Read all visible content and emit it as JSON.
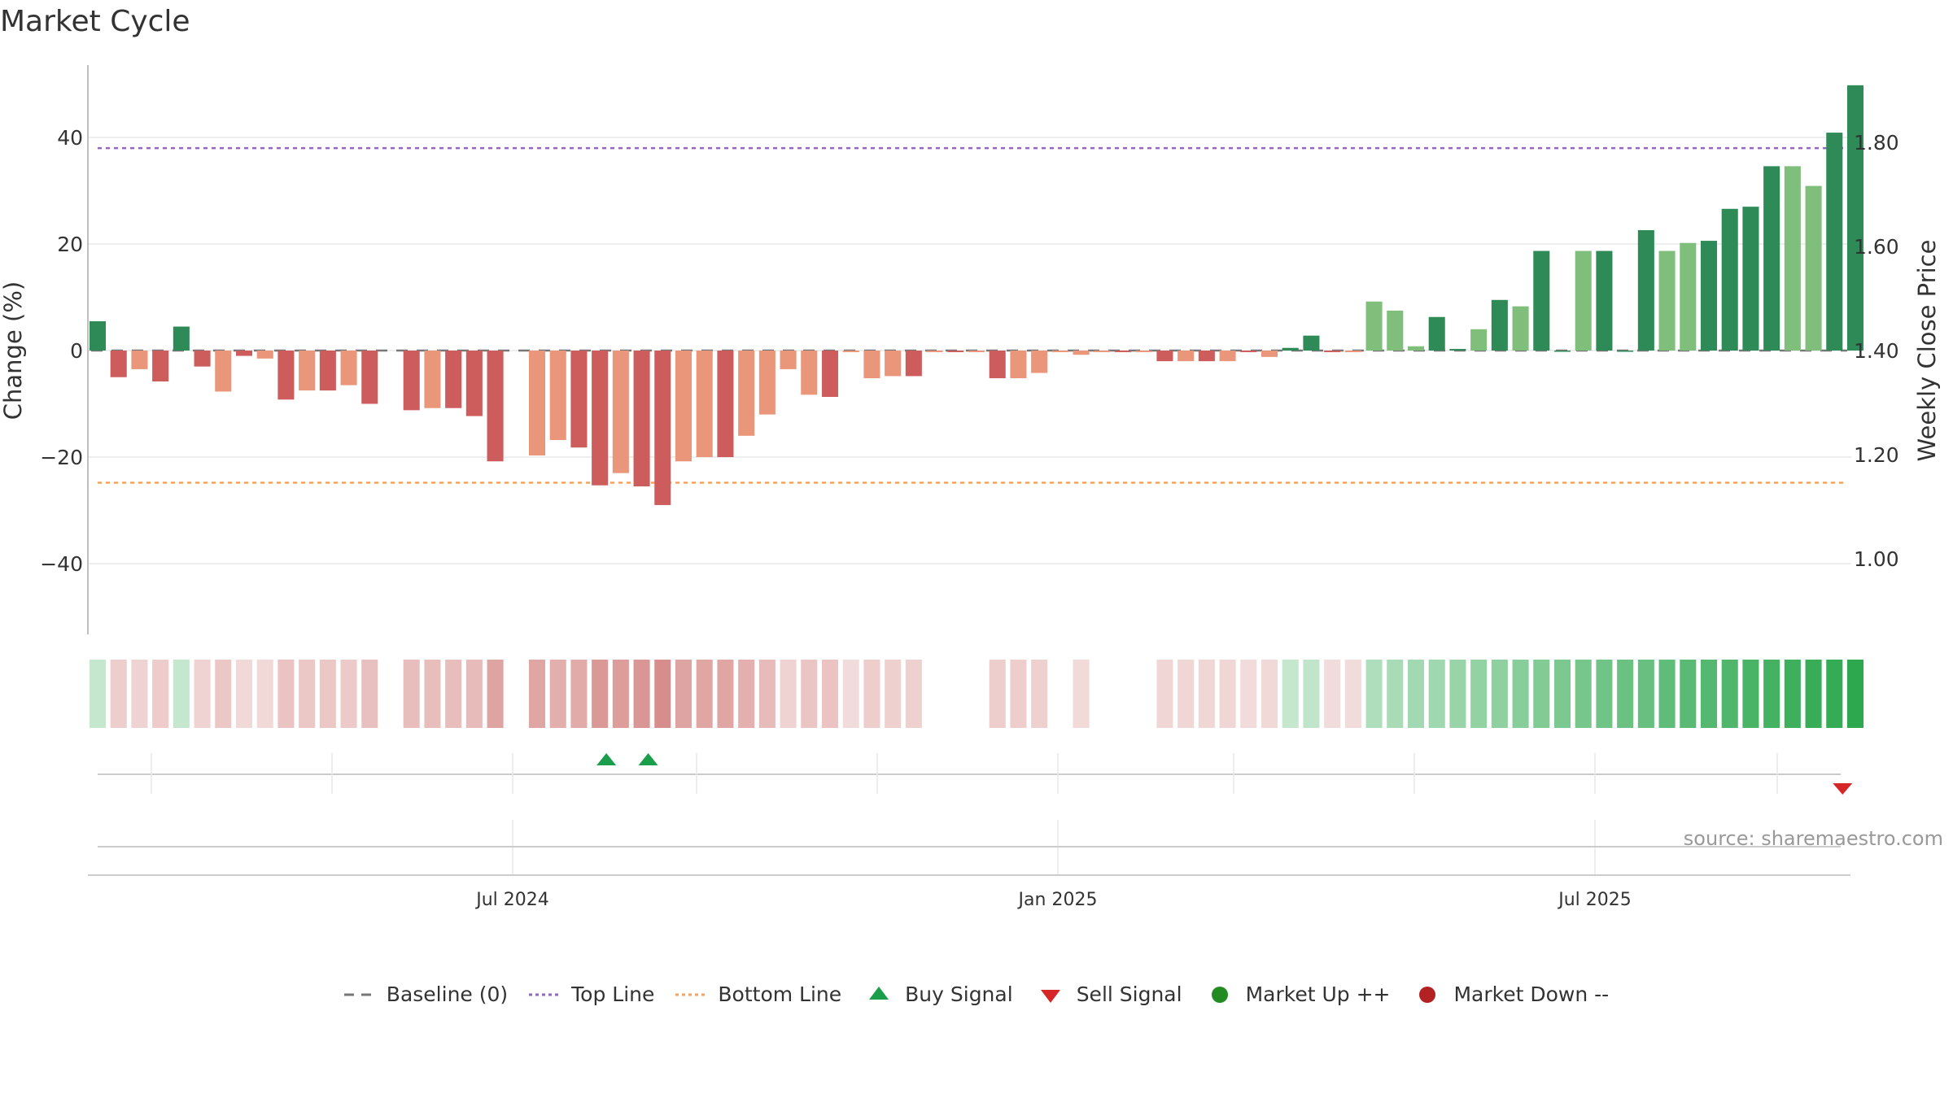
{
  "chart_data": {
    "type": "bar",
    "title": "Market Cycle",
    "ylabel_left": "Change (%)",
    "ylabel_right": "Weekly Close Price",
    "y_left_ticks": [
      -40,
      -20,
      0,
      20,
      40
    ],
    "y_right_ticks": [
      "1.00",
      "1.20",
      "1.40",
      "1.60",
      "1.80"
    ],
    "y_left_range": [
      -54,
      54
    ],
    "y_right_range": [
      0.85,
      1.95
    ],
    "x_tick_labels": [
      "Jul 2024",
      "Jan 2025",
      "Jul 2025"
    ],
    "top_line": 38,
    "bottom_line": -24.8,
    "baseline": 0,
    "series_change": [
      5.5,
      -5,
      -3.5,
      -5.8,
      4.5,
      -3,
      -7.7,
      -1,
      -1.5,
      -9.2,
      -7.5,
      -7.5,
      -6.5,
      -10,
      null,
      -11.2,
      -10.8,
      -10.8,
      -12.3,
      -20.8,
      null,
      -19.7,
      -16.8,
      -18.2,
      -25.3,
      -23,
      -25.5,
      -29,
      -20.8,
      -20,
      -20,
      -16,
      -12,
      -3.5,
      -8.3,
      -8.7,
      -0.3,
      -5.2,
      -4.8,
      -4.8,
      -0.3,
      -0.3,
      -0.3,
      -5.2,
      -5.2,
      -4.2,
      -0.3,
      -0.8,
      -0.3,
      -0.3,
      -0.3,
      -2,
      -2,
      -2,
      -2,
      -0.3,
      -1.2,
      0.5,
      2.8,
      -0.3,
      -0.3,
      9.2,
      7.5,
      0.8,
      6.3,
      0.3,
      4,
      9.5,
      8.3,
      18.7,
      0,
      18.7,
      18.7,
      0,
      22.6,
      18.7,
      20.2,
      20.6,
      26.6,
      27,
      34.6,
      34.6,
      30.9,
      40.9,
      49.8
    ],
    "legend": [
      "Baseline (0)",
      "Top Line",
      "Bottom Line",
      "Buy Signal",
      "Sell Signal",
      "Market Up ++",
      "Market Down --"
    ],
    "buy_signals": [
      24,
      26
    ],
    "sell_signals": [
      83
    ],
    "colors": {
      "up_strong": "#2e8b57",
      "up_light": "#7fbf7b",
      "down_strong": "#cd5c5c",
      "down_light": "#e9967a",
      "top_line": "#9467bd",
      "bottom_line": "#f4a460",
      "buy": "#1a9e4b",
      "sell": "#d62728",
      "market_up": "#228b22",
      "market_down": "#b22222"
    }
  },
  "source": "source: sharemaestro.com"
}
